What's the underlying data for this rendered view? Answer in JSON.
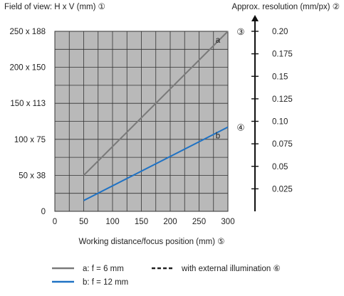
{
  "chart_data": {
    "type": "line",
    "left_axis": {
      "title": "Field of view: H x V (mm)",
      "title_marker": "①",
      "range": [
        0,
        250
      ],
      "tick_values": [
        0,
        50,
        100,
        150,
        200,
        250
      ],
      "tick_labels": [
        "0",
        "50 x 38",
        "100 x 75",
        "150 x 113",
        "200 x 150",
        "250 x 188"
      ]
    },
    "right_axis": {
      "title": "Approx. resolution (mm/px)",
      "title_marker": "②",
      "range": [
        0,
        0.2
      ],
      "tick_values": [
        0.025,
        0.05,
        0.075,
        0.1,
        0.125,
        0.15,
        0.175,
        0.2
      ],
      "tick_labels": [
        "0.025",
        "0.05",
        "0.075",
        "0.10",
        "0.125",
        "0.15",
        "0.175",
        "0.20"
      ]
    },
    "x_axis": {
      "title": "Working distance/focus position (mm)",
      "title_marker": "⑤",
      "range": [
        0,
        300
      ],
      "tick_values": [
        0,
        50,
        100,
        150,
        200,
        250,
        300
      ],
      "tick_labels": [
        "0",
        "50",
        "100",
        "150",
        "200",
        "250",
        "300"
      ]
    },
    "grid": true,
    "series": [
      {
        "key": "a",
        "label": "a",
        "end_marker": "③",
        "color": "#7a7a7a",
        "x": [
          50,
          300
        ],
        "y": [
          50,
          250
        ]
      },
      {
        "key": "b",
        "label": "b",
        "end_marker": "④",
        "color": "#1f72c4",
        "x": [
          50,
          300
        ],
        "y": [
          15,
          117
        ]
      }
    ],
    "legend": {
      "placement": "bottom-left",
      "items": [
        {
          "key": "a",
          "label": "a: f = 6 mm",
          "style": "solid",
          "color": "#7a7a7a"
        },
        {
          "key": "b",
          "label": "b: f = 12 mm",
          "style": "solid",
          "color": "#1f72c4"
        },
        {
          "key": "ext",
          "label": "with external illumination",
          "marker": "⑥",
          "style": "dashed",
          "color": "#222222"
        }
      ]
    },
    "colors": {
      "plot_background": "#b9b9b9",
      "grid": "#333333"
    }
  }
}
